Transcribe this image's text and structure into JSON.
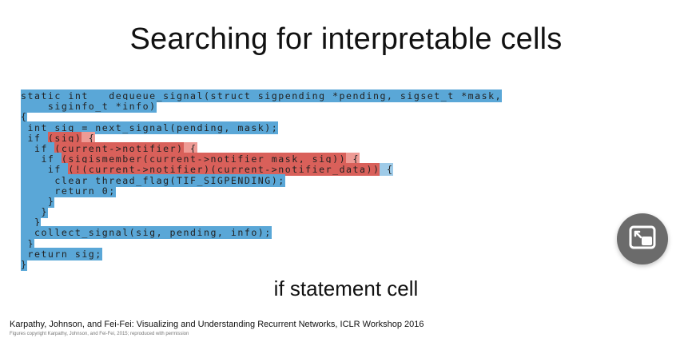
{
  "slide": {
    "title": "Searching for  interpretable cells",
    "caption": "if statement cell",
    "citation": "Karpathy, Johnson, and Fei-Fei: Visualizing and Understanding Recurrent Networks, ICLR Workshop 2016",
    "copyright": "Figures copyright Karpathy, Johnson, and Fei-Fei, 2015; reproduced with permission"
  },
  "code_lines": [
    [
      "static int __dequeue_signal(struct sigpending *pending, sigset_t *mask,"
    ],
    [
      "    siginfo_t *info)"
    ],
    [
      "{"
    ],
    [
      " int sig = next_signal(pending, mask);"
    ],
    [
      " if ",
      "(sig)",
      " {"
    ],
    [
      "  if ",
      "(current->notifier)",
      " {"
    ],
    [
      "   if ",
      "(sigismember(current->notifier_mask, sig))",
      " {"
    ],
    [
      "    if ",
      "(!(current->notifier)(current->notifier_data))",
      " {"
    ],
    [
      "     clear_thread_flag(TIF_SIGPENDING);"
    ],
    [
      "     return 0;"
    ],
    [
      "    }"
    ],
    [
      "   }"
    ],
    [
      "  }"
    ],
    [
      "  collect_signal(sig, pending, info);"
    ],
    [
      " }"
    ],
    [
      " return sig;"
    ],
    [
      "}"
    ]
  ],
  "pip_button": {
    "icon": "picture-in-picture-icon",
    "color": "#6b6b6b"
  },
  "colors": {
    "blue": "#5aa7d7",
    "red": "#d9605a"
  }
}
